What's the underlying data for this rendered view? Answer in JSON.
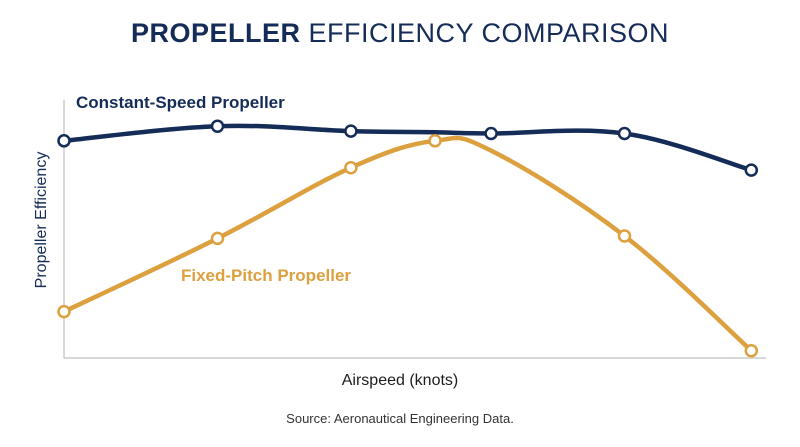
{
  "title": {
    "bold": "PROPELLER",
    "rest": "EFFICIENCY COMPARISON"
  },
  "source": "Source: Aeronautical Engineering Data.",
  "colors": {
    "constant_speed": "#142c57",
    "fixed_pitch": "#dca03f",
    "axis": "#cccccc"
  },
  "chart_data": {
    "type": "line",
    "title": "PROPELLER EFFICIENCY COMPARISON",
    "xlabel": "Airspeed (knots)",
    "ylabel": "Propeller Efficiency",
    "x": [
      0,
      1.15,
      2.15,
      2.78,
      3.2,
      4.2,
      5.15
    ],
    "xlim": [
      0,
      5.2
    ],
    "ylim": [
      0,
      1
    ],
    "grid": false,
    "series": [
      {
        "name": "Constant-Speed Propeller",
        "color": "#142c57",
        "markers": [
          true,
          true,
          true,
          false,
          true,
          true,
          true
        ],
        "values": [
          0.89,
          0.95,
          0.93,
          0.925,
          0.92,
          0.92,
          0.77
        ]
      },
      {
        "name": "Fixed-Pitch Propeller",
        "color": "#dca03f",
        "markers": [
          true,
          true,
          true,
          true,
          false,
          true,
          true
        ],
        "values": [
          0.19,
          0.49,
          0.78,
          0.89,
          0.85,
          0.5,
          0.03
        ]
      }
    ]
  }
}
